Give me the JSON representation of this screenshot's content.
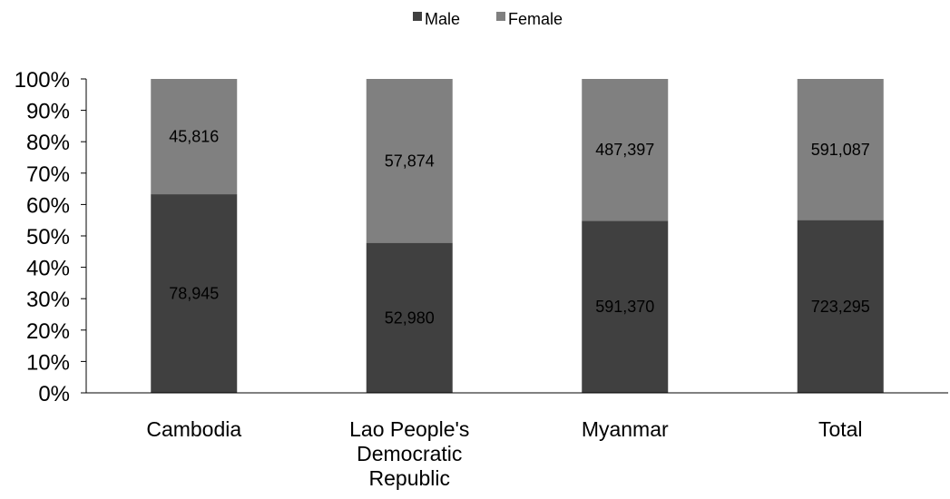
{
  "chart_data": {
    "type": "bar",
    "stacked": true,
    "normalized": true,
    "categories": [
      [
        "Cambodia"
      ],
      [
        "Lao People's",
        "Democratic",
        "Republic"
      ],
      [
        "Myanmar"
      ],
      [
        "Total"
      ]
    ],
    "series": [
      {
        "name": "Male",
        "color": "#404040",
        "values": [
          78945,
          52980,
          591370,
          723295
        ],
        "labels": [
          "78,945",
          "52,980",
          "591,370",
          "723,295"
        ]
      },
      {
        "name": "Female",
        "color": "#808080",
        "values": [
          45816,
          57874,
          487397,
          591087
        ],
        "labels": [
          "45,816",
          "57,874",
          "487,397",
          "591,087"
        ]
      }
    ],
    "yticks": [
      "0%",
      "10%",
      "20%",
      "30%",
      "40%",
      "50%",
      "60%",
      "70%",
      "80%",
      "90%",
      "100%"
    ],
    "ylim": [
      0,
      100
    ],
    "legend_position": "top",
    "grid": false
  }
}
